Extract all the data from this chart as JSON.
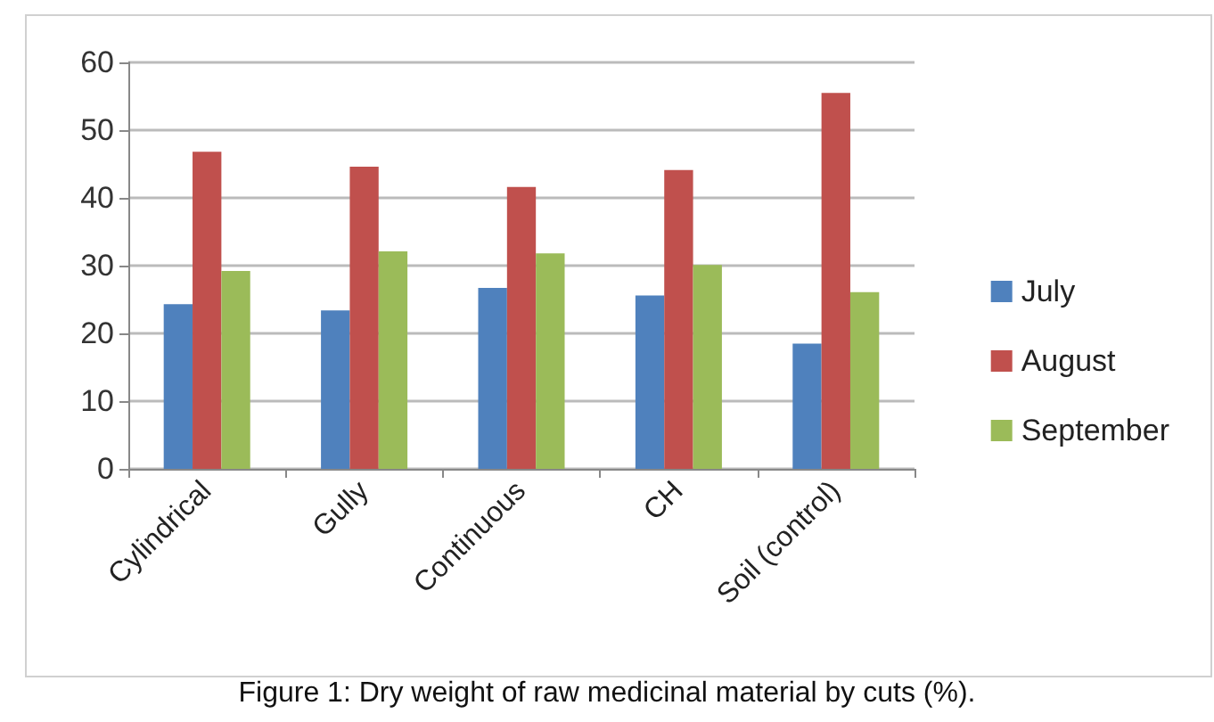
{
  "chart_data": {
    "type": "bar",
    "categories": [
      "Cylindrical",
      "Gully",
      "Continuous",
      "CH",
      "Soil (control)"
    ],
    "series": [
      {
        "name": "July",
        "color": "#4f81bd",
        "values": [
          24.3,
          23.4,
          26.7,
          25.6,
          18.5
        ]
      },
      {
        "name": "August",
        "color": "#c0504d",
        "values": [
          46.8,
          44.6,
          41.6,
          44.1,
          55.5
        ]
      },
      {
        "name": "September",
        "color": "#9bbb59",
        "values": [
          29.2,
          32.1,
          31.8,
          30.1,
          26.1
        ]
      }
    ],
    "ylim": [
      0,
      60
    ],
    "yticks": [
      0,
      10,
      20,
      30,
      40,
      50,
      60
    ],
    "grid": "y",
    "legend": "right",
    "annotations": [
      "Figure 1: Dry weight of raw medicinal material by cuts (%)."
    ]
  }
}
